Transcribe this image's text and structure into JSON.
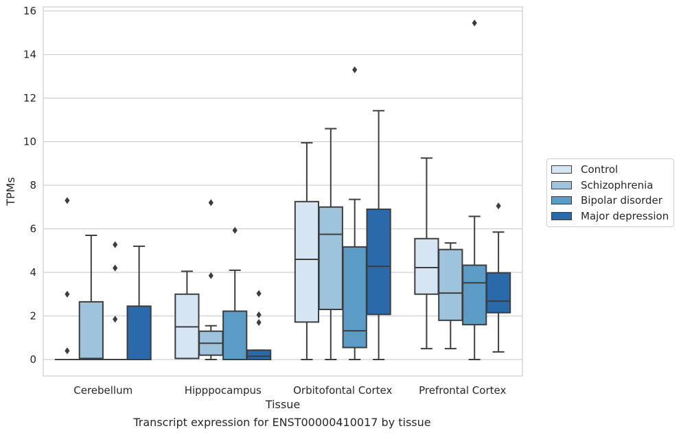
{
  "chart_data": {
    "type": "box",
    "title": "",
    "caption": "Transcript expression for ENST00000410017 by tissue",
    "xlabel": "Tissue",
    "ylabel": "TPMs",
    "ylim": [
      -0.75,
      16.2
    ],
    "yticks": [
      0,
      2,
      4,
      6,
      8,
      10,
      12,
      14,
      16
    ],
    "grid": true,
    "legend_position": "right",
    "categories": [
      "Cerebellum",
      "Hipppocampus",
      "Orbitofontal Cortex",
      "Prefrontal Cortex"
    ],
    "series": [
      {
        "name": "Control",
        "color": "#d6e5f3",
        "boxes": [
          {
            "min": 0,
            "q1": 0,
            "median": 0,
            "q3": 0,
            "max": 0,
            "outliers": [
              0.4,
              3.0,
              7.3
            ]
          },
          {
            "min": 0.05,
            "q1": 0.05,
            "median": 1.5,
            "q3": 3.0,
            "max": 4.05,
            "outliers": []
          },
          {
            "min": 0,
            "q1": 1.72,
            "median": 4.6,
            "q3": 7.25,
            "max": 9.95,
            "outliers": []
          },
          {
            "min": 0.5,
            "q1": 3.0,
            "median": 4.22,
            "q3": 5.55,
            "max": 9.25,
            "outliers": []
          }
        ]
      },
      {
        "name": "Schizophrenia",
        "color": "#9ec3dd",
        "boxes": [
          {
            "min": 0,
            "q1": 0,
            "median": 0.05,
            "q3": 2.65,
            "max": 5.7,
            "outliers": []
          },
          {
            "min": 0,
            "q1": 0.2,
            "median": 0.75,
            "q3": 1.3,
            "max": 1.55,
            "outliers": [
              3.85,
              7.2
            ]
          },
          {
            "min": 0,
            "q1": 2.3,
            "median": 5.75,
            "q3": 7.0,
            "max": 10.6,
            "outliers": []
          },
          {
            "min": 0.5,
            "q1": 1.8,
            "median": 3.05,
            "q3": 5.05,
            "max": 5.35,
            "outliers": []
          }
        ]
      },
      {
        "name": "Bipolar disorder",
        "color": "#5b9cc7",
        "boxes": [
          {
            "min": 0,
            "q1": 0,
            "median": 0,
            "q3": 0,
            "max": 0,
            "outliers": [
              1.85,
              4.2,
              5.27
            ]
          },
          {
            "min": 0,
            "q1": 0,
            "median": 0,
            "q3": 2.22,
            "max": 4.1,
            "outliers": [
              5.93
            ]
          },
          {
            "min": 0,
            "q1": 0.55,
            "median": 1.32,
            "q3": 5.17,
            "max": 7.35,
            "outliers": [
              13.3
            ]
          },
          {
            "min": 0,
            "q1": 1.6,
            "median": 3.52,
            "q3": 4.33,
            "max": 6.57,
            "outliers": [
              15.45
            ]
          }
        ]
      },
      {
        "name": "Major depression",
        "color": "#2a6aaa",
        "boxes": [
          {
            "min": 0,
            "q1": 0,
            "median": 0,
            "q3": 2.45,
            "max": 5.2,
            "outliers": []
          },
          {
            "min": 0,
            "q1": 0,
            "median": 0.15,
            "q3": 0.43,
            "max": 0.43,
            "outliers": [
              1.7,
              2.05,
              3.03
            ]
          },
          {
            "min": 0,
            "q1": 2.07,
            "median": 4.28,
            "q3": 6.9,
            "max": 11.42,
            "outliers": []
          },
          {
            "min": 0.35,
            "q1": 2.15,
            "median": 2.68,
            "q3": 3.98,
            "max": 5.85,
            "outliers": [
              7.05
            ]
          }
        ]
      }
    ]
  }
}
